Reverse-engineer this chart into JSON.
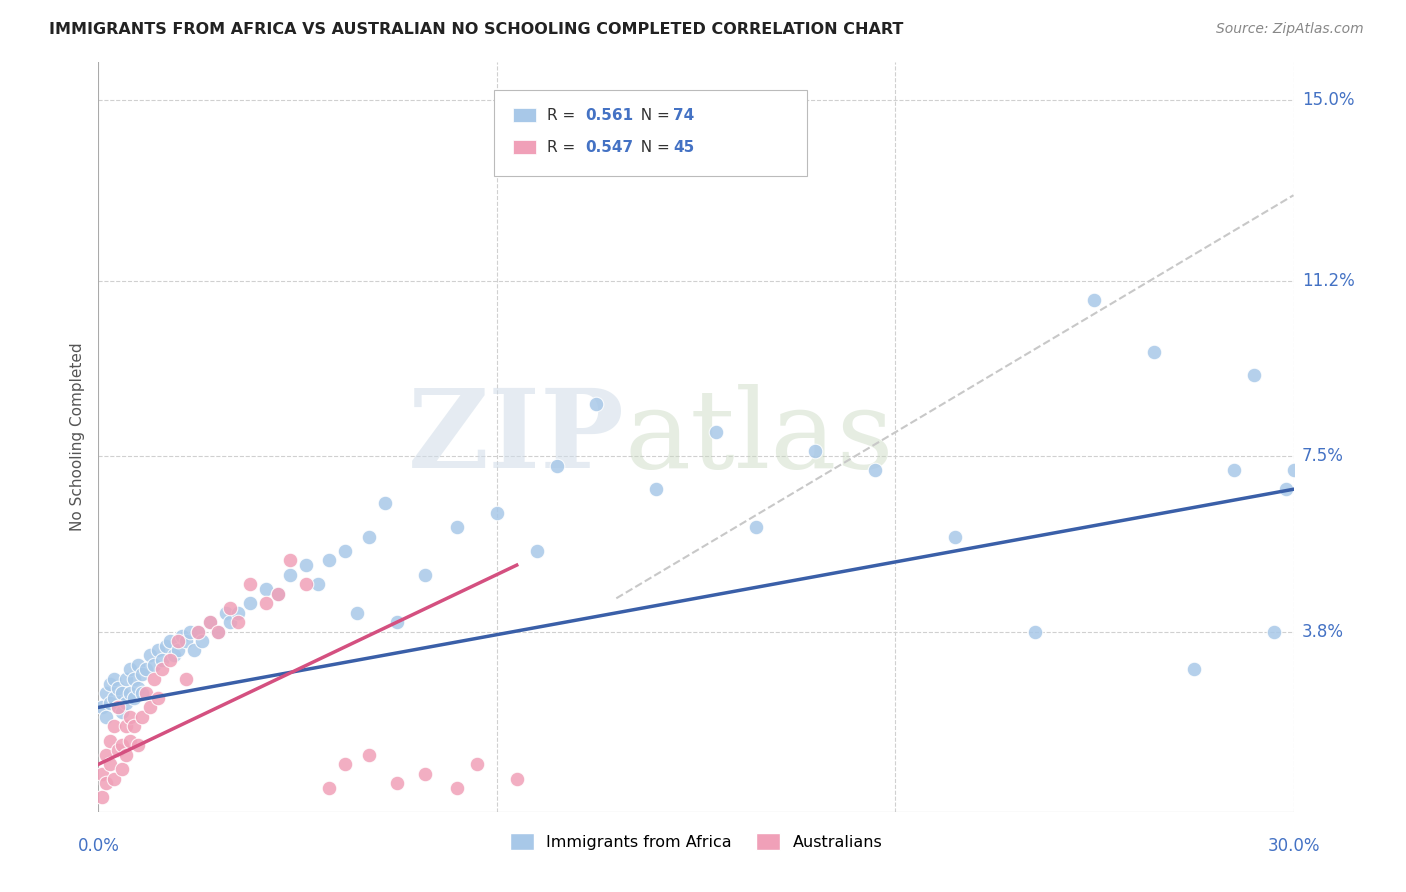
{
  "title": "IMMIGRANTS FROM AFRICA VS AUSTRALIAN NO SCHOOLING COMPLETED CORRELATION CHART",
  "source": "Source: ZipAtlas.com",
  "ylabel": "No Schooling Completed",
  "xlim": [
    0.0,
    0.3
  ],
  "ylim": [
    0.0,
    0.158
  ],
  "background_color": "#ffffff",
  "grid_color": "#d0d0d0",
  "watermark_zip": "ZIP",
  "watermark_atlas": "atlas",
  "color_blue": "#a8c8e8",
  "color_pink": "#f0a0b8",
  "line_blue": "#3a5fa8",
  "line_pink": "#d45080",
  "line_dashed": "#c8c8c8",
  "africa_x": [
    0.001,
    0.002,
    0.002,
    0.003,
    0.003,
    0.004,
    0.004,
    0.005,
    0.005,
    0.006,
    0.006,
    0.007,
    0.007,
    0.008,
    0.008,
    0.009,
    0.009,
    0.01,
    0.01,
    0.011,
    0.011,
    0.012,
    0.013,
    0.014,
    0.015,
    0.016,
    0.017,
    0.018,
    0.019,
    0.02,
    0.021,
    0.022,
    0.023,
    0.024,
    0.025,
    0.026,
    0.028,
    0.03,
    0.032,
    0.033,
    0.035,
    0.038,
    0.042,
    0.045,
    0.048,
    0.052,
    0.055,
    0.058,
    0.062,
    0.065,
    0.068,
    0.072,
    0.075,
    0.082,
    0.09,
    0.1,
    0.11,
    0.115,
    0.125,
    0.14,
    0.155,
    0.165,
    0.18,
    0.195,
    0.215,
    0.235,
    0.25,
    0.265,
    0.275,
    0.285,
    0.29,
    0.295,
    0.298,
    0.3
  ],
  "africa_y": [
    0.022,
    0.02,
    0.025,
    0.023,
    0.027,
    0.024,
    0.028,
    0.022,
    0.026,
    0.021,
    0.025,
    0.023,
    0.028,
    0.025,
    0.03,
    0.024,
    0.028,
    0.026,
    0.031,
    0.025,
    0.029,
    0.03,
    0.033,
    0.031,
    0.034,
    0.032,
    0.035,
    0.036,
    0.033,
    0.034,
    0.037,
    0.036,
    0.038,
    0.034,
    0.038,
    0.036,
    0.04,
    0.038,
    0.042,
    0.04,
    0.042,
    0.044,
    0.047,
    0.046,
    0.05,
    0.052,
    0.048,
    0.053,
    0.055,
    0.042,
    0.058,
    0.065,
    0.04,
    0.05,
    0.06,
    0.063,
    0.055,
    0.073,
    0.086,
    0.068,
    0.08,
    0.06,
    0.076,
    0.072,
    0.058,
    0.038,
    0.108,
    0.097,
    0.03,
    0.072,
    0.092,
    0.038,
    0.068,
    0.072
  ],
  "australian_x": [
    0.001,
    0.001,
    0.002,
    0.002,
    0.003,
    0.003,
    0.004,
    0.004,
    0.005,
    0.005,
    0.006,
    0.006,
    0.007,
    0.007,
    0.008,
    0.008,
    0.009,
    0.01,
    0.011,
    0.012,
    0.013,
    0.014,
    0.015,
    0.016,
    0.018,
    0.02,
    0.022,
    0.025,
    0.028,
    0.03,
    0.033,
    0.035,
    0.038,
    0.042,
    0.045,
    0.048,
    0.052,
    0.058,
    0.062,
    0.068,
    0.075,
    0.082,
    0.09,
    0.095,
    0.105
  ],
  "australian_y": [
    0.008,
    0.003,
    0.006,
    0.012,
    0.01,
    0.015,
    0.007,
    0.018,
    0.013,
    0.022,
    0.009,
    0.014,
    0.012,
    0.018,
    0.015,
    0.02,
    0.018,
    0.014,
    0.02,
    0.025,
    0.022,
    0.028,
    0.024,
    0.03,
    0.032,
    0.036,
    0.028,
    0.038,
    0.04,
    0.038,
    0.043,
    0.04,
    0.048,
    0.044,
    0.046,
    0.053,
    0.048,
    0.005,
    0.01,
    0.012,
    0.006,
    0.008,
    0.005,
    0.01,
    0.007
  ],
  "blue_line_x": [
    0.0,
    0.3
  ],
  "blue_line_y": [
    0.022,
    0.068
  ],
  "pink_line_x": [
    0.0,
    0.105
  ],
  "pink_line_y": [
    0.01,
    0.052
  ],
  "dash_line_x": [
    0.13,
    0.3
  ],
  "dash_line_y": [
    0.045,
    0.13
  ],
  "legend_R1": "R =  0.561",
  "legend_N1": "N = 74",
  "legend_R2": "R =  0.547",
  "legend_N2": "N = 45"
}
